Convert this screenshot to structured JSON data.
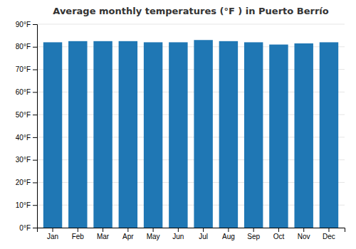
{
  "chart_data": {
    "type": "bar",
    "title": "Average monthly temperatures (°F ) in Puerto Berrío",
    "categories": [
      "Jan",
      "Feb",
      "Mar",
      "Apr",
      "May",
      "Jun",
      "Jul",
      "Aug",
      "Sep",
      "Oct",
      "Nov",
      "Dec"
    ],
    "values": [
      82,
      82.5,
      82.5,
      82.5,
      82,
      82,
      83,
      82.5,
      82,
      81,
      81.5,
      82
    ],
    "ylim": [
      0,
      90
    ],
    "yticks": [
      {
        "value": 0,
        "label": "0°F"
      },
      {
        "value": 10,
        "label": "10°F"
      },
      {
        "value": 20,
        "label": "20°F"
      },
      {
        "value": 30,
        "label": "30°F"
      },
      {
        "value": 40,
        "label": "40°F"
      },
      {
        "value": 50,
        "label": "50°F"
      },
      {
        "value": 60,
        "label": "60°F"
      },
      {
        "value": 70,
        "label": "70°F"
      },
      {
        "value": 80,
        "label": "80°F"
      },
      {
        "value": 90,
        "label": "90°F"
      }
    ],
    "grid": true
  }
}
